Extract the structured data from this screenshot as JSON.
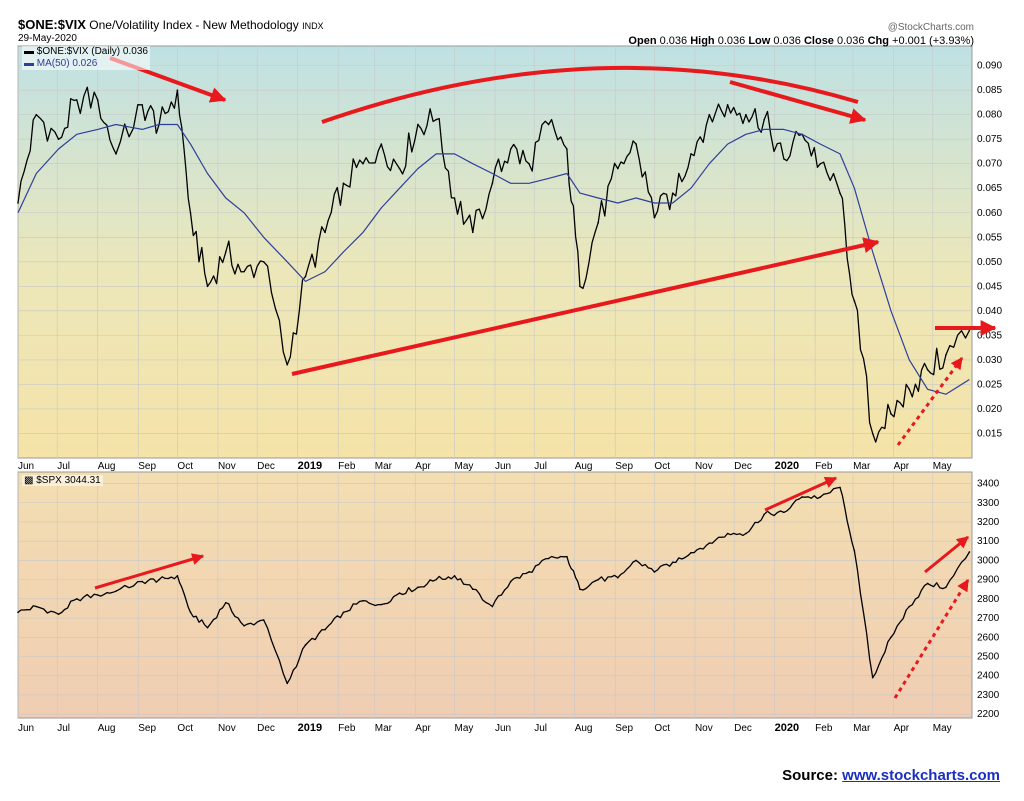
{
  "header": {
    "symbol": "$ONE:$VIX",
    "name": "One/Volatility Index - New Methodology",
    "exchange": "INDX",
    "date": "29-May-2020",
    "brand": "@StockCharts.com",
    "open_label": "Open",
    "open": "0.036",
    "high_label": "High",
    "high": "0.036",
    "low_label": "Low",
    "low": "0.036",
    "close_label": "Close",
    "close": "0.036",
    "chg_label": "Chg",
    "chg": "+0.001 (+3.93%)"
  },
  "source": {
    "label": "Source:",
    "link": "www.stockcharts.com"
  },
  "colors": {
    "price": "#000000",
    "ma": "#2e3f9a",
    "annotation": "#e8191d",
    "grid": "#c8c8c8"
  },
  "chart_data": [
    {
      "type": "line",
      "legend": [
        "$ONE:$VIX (Daily) 0.036",
        "MA(50) 0.026"
      ],
      "ylim": [
        0.01,
        0.094
      ],
      "y_ticks": [
        0.015,
        0.02,
        0.025,
        0.03,
        0.035,
        0.04,
        0.045,
        0.05,
        0.055,
        0.06,
        0.065,
        0.07,
        0.075,
        0.08,
        0.085,
        0.09
      ],
      "x_tick_labels": [
        "Jun",
        "Jul",
        "Aug",
        "Sep",
        "Oct",
        "Nov",
        "Dec",
        "2019",
        "Feb",
        "Mar",
        "Apr",
        "May",
        "Jun",
        "Jul",
        "Aug",
        "Sep",
        "Oct",
        "Nov",
        "Dec",
        "2020",
        "Feb",
        "Mar",
        "Apr",
        "May"
      ],
      "x": [
        "2018-06-01",
        "2018-06-15",
        "2018-07-02",
        "2018-07-16",
        "2018-08-01",
        "2018-08-15",
        "2018-09-04",
        "2018-09-17",
        "2018-10-01",
        "2018-10-11",
        "2018-10-24",
        "2018-11-07",
        "2018-11-21",
        "2018-12-06",
        "2018-12-24",
        "2019-01-07",
        "2019-01-22",
        "2019-02-05",
        "2019-02-20",
        "2019-03-06",
        "2019-03-20",
        "2019-04-03",
        "2019-04-17",
        "2019-05-01",
        "2019-05-15",
        "2019-05-30",
        "2019-06-13",
        "2019-06-27",
        "2019-07-12",
        "2019-07-26",
        "2019-08-05",
        "2019-08-19",
        "2019-09-03",
        "2019-09-17",
        "2019-10-01",
        "2019-10-15",
        "2019-10-29",
        "2019-11-12",
        "2019-11-26",
        "2019-12-10",
        "2019-12-24",
        "2020-01-08",
        "2020-01-22",
        "2020-02-05",
        "2020-02-20",
        "2020-03-02",
        "2020-03-16",
        "2020-03-30",
        "2020-04-13",
        "2020-04-27",
        "2020-05-11",
        "2020-05-29"
      ],
      "series": [
        {
          "name": "$ONE:$VIX (Daily)",
          "values": [
            0.062,
            0.08,
            0.075,
            0.083,
            0.083,
            0.072,
            0.082,
            0.078,
            0.085,
            0.06,
            0.045,
            0.052,
            0.048,
            0.05,
            0.029,
            0.047,
            0.056,
            0.066,
            0.07,
            0.074,
            0.069,
            0.078,
            0.079,
            0.063,
            0.056,
            0.066,
            0.073,
            0.07,
            0.078,
            0.073,
            0.045,
            0.058,
            0.069,
            0.074,
            0.059,
            0.064,
            0.072,
            0.08,
            0.082,
            0.08,
            0.079,
            0.071,
            0.076,
            0.07,
            0.064,
            0.042,
            0.015,
            0.019,
            0.024,
            0.028,
            0.031,
            0.036
          ]
        },
        {
          "name": "MA(50)",
          "values": [
            0.06,
            0.068,
            0.073,
            0.076,
            0.077,
            0.078,
            0.077,
            0.078,
            0.078,
            0.074,
            0.068,
            0.063,
            0.06,
            0.055,
            0.05,
            0.046,
            0.048,
            0.052,
            0.056,
            0.061,
            0.065,
            0.069,
            0.072,
            0.072,
            0.07,
            0.068,
            0.066,
            0.066,
            0.067,
            0.068,
            0.064,
            0.063,
            0.062,
            0.063,
            0.062,
            0.062,
            0.065,
            0.07,
            0.074,
            0.076,
            0.077,
            0.077,
            0.076,
            0.074,
            0.072,
            0.065,
            0.052,
            0.04,
            0.03,
            0.024,
            0.023,
            0.026
          ]
        }
      ]
    },
    {
      "type": "line",
      "legend": [
        "$SPX 3044.31"
      ],
      "ylim": [
        2180,
        3460
      ],
      "y_ticks": [
        2200,
        2300,
        2400,
        2500,
        2600,
        2700,
        2800,
        2900,
        3000,
        3100,
        3200,
        3300,
        3400
      ],
      "x_tick_labels": [
        "Jun",
        "Jul",
        "Aug",
        "Sep",
        "Oct",
        "Nov",
        "Dec",
        "2019",
        "Feb",
        "Mar",
        "Apr",
        "May",
        "Jun",
        "Jul",
        "Aug",
        "Sep",
        "Oct",
        "Nov",
        "Dec",
        "2020",
        "Feb",
        "Mar",
        "Apr",
        "May"
      ],
      "x": [
        "2018-06-01",
        "2018-06-15",
        "2018-07-02",
        "2018-07-16",
        "2018-08-01",
        "2018-08-15",
        "2018-09-04",
        "2018-09-17",
        "2018-10-01",
        "2018-10-11",
        "2018-10-24",
        "2018-11-07",
        "2018-11-21",
        "2018-12-06",
        "2018-12-24",
        "2019-01-07",
        "2019-01-22",
        "2019-02-05",
        "2019-02-20",
        "2019-03-06",
        "2019-03-20",
        "2019-04-03",
        "2019-04-17",
        "2019-05-01",
        "2019-05-15",
        "2019-05-30",
        "2019-06-13",
        "2019-06-27",
        "2019-07-12",
        "2019-07-26",
        "2019-08-05",
        "2019-08-19",
        "2019-09-03",
        "2019-09-17",
        "2019-10-01",
        "2019-10-15",
        "2019-10-29",
        "2019-11-12",
        "2019-11-26",
        "2019-12-10",
        "2019-12-24",
        "2020-01-08",
        "2020-01-22",
        "2020-02-05",
        "2020-02-20",
        "2020-03-02",
        "2020-03-16",
        "2020-03-30",
        "2020-04-13",
        "2020-04-27",
        "2020-05-11",
        "2020-05-29"
      ],
      "series": [
        {
          "name": "$SPX",
          "values": [
            2730,
            2760,
            2720,
            2800,
            2820,
            2840,
            2890,
            2900,
            2920,
            2730,
            2650,
            2780,
            2660,
            2690,
            2360,
            2560,
            2640,
            2730,
            2790,
            2770,
            2830,
            2860,
            2900,
            2920,
            2850,
            2760,
            2890,
            2940,
            3010,
            3020,
            2850,
            2900,
            2910,
            3000,
            2940,
            2990,
            3040,
            3090,
            3140,
            3140,
            3240,
            3250,
            3330,
            3330,
            3380,
            3050,
            2390,
            2600,
            2760,
            2880,
            2860,
            3044
          ]
        }
      ]
    }
  ]
}
